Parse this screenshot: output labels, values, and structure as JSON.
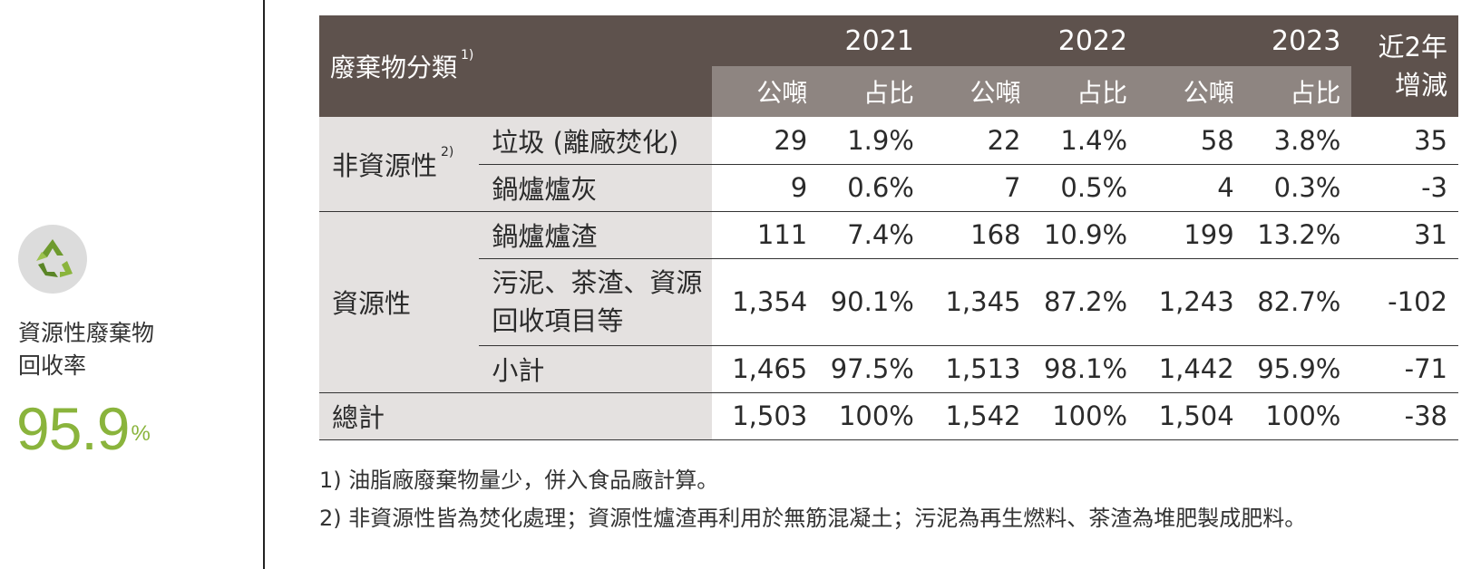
{
  "sidebar": {
    "icon": "recycle-icon",
    "label_line1": "資源性廢棄物",
    "label_line2": "回收率",
    "rate_value": "95.9",
    "rate_unit": "%",
    "accent_color": "#8ab43c"
  },
  "table": {
    "header": {
      "category": "廢棄物分類",
      "category_note": "1)",
      "years": [
        "2021",
        "2022",
        "2023"
      ],
      "tons": "公噸",
      "share": "占比",
      "change_line1": "近2年",
      "change_line2": "增減"
    },
    "groups": {
      "nonresource": {
        "label": "非資源性",
        "note": "2)"
      },
      "resource": {
        "label": "資源性"
      },
      "total": {
        "label": "總計"
      }
    },
    "rows": [
      {
        "item": "垃圾 (離廠焚化)",
        "t2021": "29",
        "p2021": "1.9%",
        "t2022": "22",
        "p2022": "1.4%",
        "t2023": "58",
        "p2023": "3.8%",
        "change": "35"
      },
      {
        "item": "鍋爐爐灰",
        "t2021": "9",
        "p2021": "0.6%",
        "t2022": "7",
        "p2022": "0.5%",
        "t2023": "4",
        "p2023": "0.3%",
        "change": "-3"
      },
      {
        "item": "鍋爐爐渣",
        "t2021": "111",
        "p2021": "7.4%",
        "t2022": "168",
        "p2022": "10.9%",
        "t2023": "199",
        "p2023": "13.2%",
        "change": "31"
      },
      {
        "item_line1": "污泥、茶渣、資源",
        "item_line2": "回收項目等",
        "t2021": "1,354",
        "p2021": "90.1%",
        "t2022": "1,345",
        "p2022": "87.2%",
        "t2023": "1,243",
        "p2023": "82.7%",
        "change": "-102"
      },
      {
        "item": "小計",
        "t2021": "1,465",
        "p2021": "97.5%",
        "t2022": "1,513",
        "p2022": "98.1%",
        "t2023": "1,442",
        "p2023": "95.9%",
        "change": "-71"
      },
      {
        "t2021": "1,503",
        "p2021": "100%",
        "t2022": "1,542",
        "p2022": "100%",
        "t2023": "1,504",
        "p2023": "100%",
        "change": "-38"
      }
    ]
  },
  "notes": [
    "1) 油脂廠廢棄物量少，併入食品廠計算。",
    "2) 非資源性皆為焚化處理；資源性爐渣再利用於無筋混凝土；污泥為再生燃料、茶渣為堆肥製成肥料。"
  ]
}
